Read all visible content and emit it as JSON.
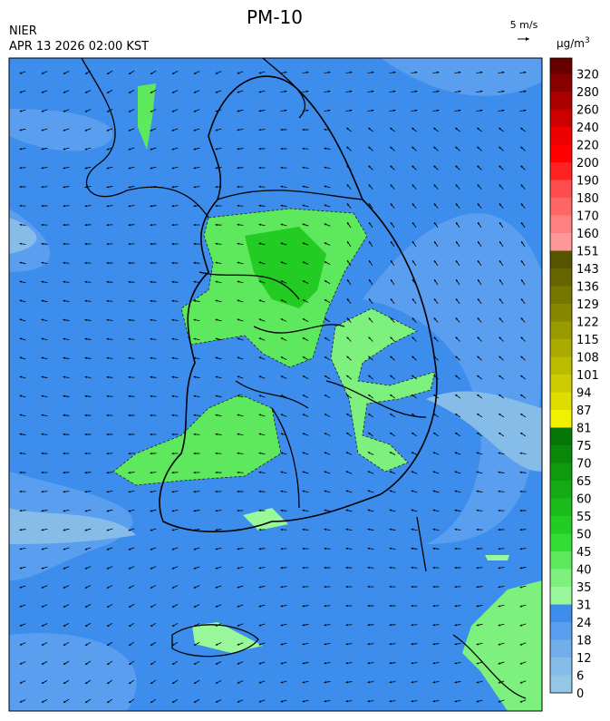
{
  "header": {
    "title": "PM-10",
    "agency": "NIER",
    "time": "APR 13 2026 02:00 KST"
  },
  "wind_legend": {
    "label": "5 m/s"
  },
  "colorbar": {
    "unit": {
      "base": "µg/m",
      "sup": "3"
    },
    "labels": [
      0,
      6,
      12,
      18,
      24,
      31,
      35,
      40,
      45,
      50,
      55,
      60,
      65,
      70,
      75,
      81,
      87,
      94,
      101,
      108,
      115,
      122,
      129,
      136,
      143,
      151,
      160,
      170,
      180,
      190,
      200,
      220,
      240,
      260,
      280,
      320
    ],
    "colors": [
      "#94c6e6",
      "#86bce8",
      "#72aeea",
      "#5a9ef0",
      "#3d8ded",
      "#99f899",
      "#7df07d",
      "#5ee85e",
      "#33dd33",
      "#22cc22",
      "#1abb1a",
      "#14aa14",
      "#0f990f",
      "#0a880a",
      "#067706",
      "#f0f000",
      "#dddd00",
      "#cccc00",
      "#bbbb00",
      "#aaaa00",
      "#999900",
      "#888800",
      "#777700",
      "#666600",
      "#555500",
      "#ff9999",
      "#ff8080",
      "#ff6666",
      "#ff4d4d",
      "#ff2222",
      "#ff0000",
      "#ee0000",
      "#cc0000",
      "#aa0000",
      "#880000",
      "#660000"
    ]
  }
}
